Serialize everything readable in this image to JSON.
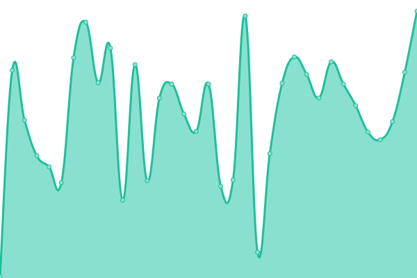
{
  "chart_data": {
    "type": "area",
    "title": "",
    "xlabel": "",
    "ylabel": "",
    "x": [
      0,
      1,
      2,
      3,
      4,
      5,
      6,
      7,
      8,
      9,
      10,
      11,
      12,
      13,
      14,
      15,
      16,
      17,
      18,
      19,
      20,
      21,
      22,
      23,
      24,
      25,
      26,
      27,
      28,
      29,
      30,
      31,
      32,
      33,
      34
    ],
    "series": [
      {
        "values": [
          2,
          299,
          227,
          176,
          160,
          137,
          317,
          368,
          281,
          331,
          112,
          307,
          140,
          259,
          279,
          236,
          211,
          279,
          132,
          141,
          377,
          37,
          179,
          280,
          318,
          293,
          259,
          311,
          279,
          248,
          210,
          199,
          225,
          296,
          384
        ]
      }
    ],
    "ylim": [
      0,
      400
    ],
    "grid": false,
    "axes_visible": false,
    "smooth": true,
    "colors": {
      "line": "#1dbf99",
      "fill": "#8ae0cf",
      "point_fill": "#8ae0cf",
      "point_stroke": "#1dbf99"
    }
  }
}
